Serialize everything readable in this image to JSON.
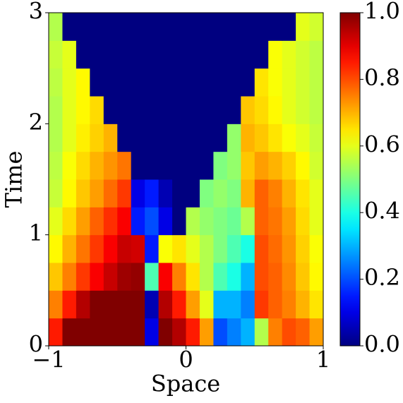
{
  "chart_data": {
    "type": "heatmap",
    "xlabel": "Space",
    "ylabel": "Time",
    "xlim": [
      -1,
      1
    ],
    "ylim": [
      0,
      3
    ],
    "xticks": [
      {
        "value": -1,
        "label": "−1"
      },
      0,
      1
    ],
    "yticks": [
      0,
      1,
      2,
      3
    ],
    "colormap": "jet",
    "clim": [
      0,
      1
    ],
    "cticks": [
      {
        "value": 0,
        "label": "0.0"
      },
      0.2,
      0.4,
      0.6,
      0.8,
      {
        "value": 1,
        "label": "1.0"
      }
    ],
    "x": [
      -0.95,
      -0.85,
      -0.75,
      -0.65,
      -0.55,
      -0.45,
      -0.35,
      -0.25,
      -0.15,
      -0.05,
      0.05,
      0.15,
      0.25,
      0.35,
      0.45,
      0.55,
      0.65,
      0.75,
      0.85,
      0.95
    ],
    "y": [
      0.125,
      0.375,
      0.625,
      0.875,
      1.125,
      1.375,
      1.625,
      1.875,
      2.125,
      2.375,
      2.625,
      2.875
    ],
    "z": [
      [
        0.85,
        1,
        1,
        1,
        1,
        1,
        1,
        0.1,
        1,
        0.95,
        0.85,
        0.72,
        0.2,
        0.25,
        0.3,
        0.55,
        0.75,
        0.8,
        0.78,
        0.72
      ],
      [
        0.75,
        0.85,
        0.95,
        1,
        1,
        1,
        1,
        0.05,
        0.95,
        0.85,
        0.72,
        0.6,
        0.3,
        0.3,
        0.25,
        0.82,
        0.78,
        0.75,
        0.7,
        0.65
      ],
      [
        0.68,
        0.75,
        0.82,
        0.88,
        0.93,
        0.97,
        0.98,
        0.45,
        0.88,
        0.75,
        0.65,
        0.55,
        0.45,
        0.4,
        0.3,
        0.8,
        0.78,
        0.74,
        0.68,
        0.63
      ],
      [
        0.63,
        0.7,
        0.76,
        0.82,
        0.88,
        0.93,
        0.92,
        0.15,
        0.62,
        0.65,
        0.6,
        0.55,
        0.5,
        0.45,
        0.4,
        0.8,
        0.77,
        0.73,
        0.67,
        0.62
      ],
      [
        0.6,
        0.66,
        0.72,
        0.78,
        0.83,
        0.88,
        0.15,
        0.2,
        0.1,
        0,
        0.55,
        0.52,
        0.5,
        0.48,
        0.55,
        0.78,
        0.76,
        0.72,
        0.66,
        0.6
      ],
      [
        0.57,
        0.63,
        0.68,
        0.72,
        0.77,
        0.82,
        0.1,
        0.15,
        0.05,
        0,
        0,
        0.5,
        0.52,
        0.5,
        0.7,
        0.78,
        0.75,
        0.7,
        0.65,
        0.6
      ],
      [
        0.56,
        0.62,
        0.66,
        0.7,
        0.73,
        0.76,
        0,
        0,
        0,
        0,
        0,
        0,
        0.5,
        0.52,
        0.68,
        0.72,
        0.7,
        0.67,
        0.63,
        0.58
      ],
      [
        0.55,
        0.6,
        0.64,
        0.67,
        0.7,
        0,
        0,
        0,
        0,
        0,
        0,
        0,
        0,
        0.52,
        0.7,
        0.68,
        0.65,
        0.62,
        0.6,
        0.57
      ],
      [
        0.55,
        0.6,
        0.63,
        0.66,
        0,
        0,
        0,
        0,
        0,
        0,
        0,
        0,
        0,
        0,
        0.68,
        0.66,
        0.63,
        0.6,
        0.58,
        0.56
      ],
      [
        0.56,
        0.6,
        0.63,
        0,
        0,
        0,
        0,
        0,
        0,
        0,
        0,
        0,
        0,
        0,
        0,
        0.65,
        0.62,
        0.6,
        0.58,
        0.56
      ],
      [
        0.57,
        0.6,
        0,
        0,
        0,
        0,
        0,
        0,
        0,
        0,
        0,
        0,
        0,
        0,
        0,
        0,
        0.62,
        0.6,
        0.58,
        0.56
      ],
      [
        0.55,
        0,
        0,
        0,
        0,
        0,
        0,
        0,
        0,
        0,
        0,
        0,
        0,
        0,
        0,
        0,
        0,
        0,
        0.6,
        0.58
      ]
    ]
  }
}
